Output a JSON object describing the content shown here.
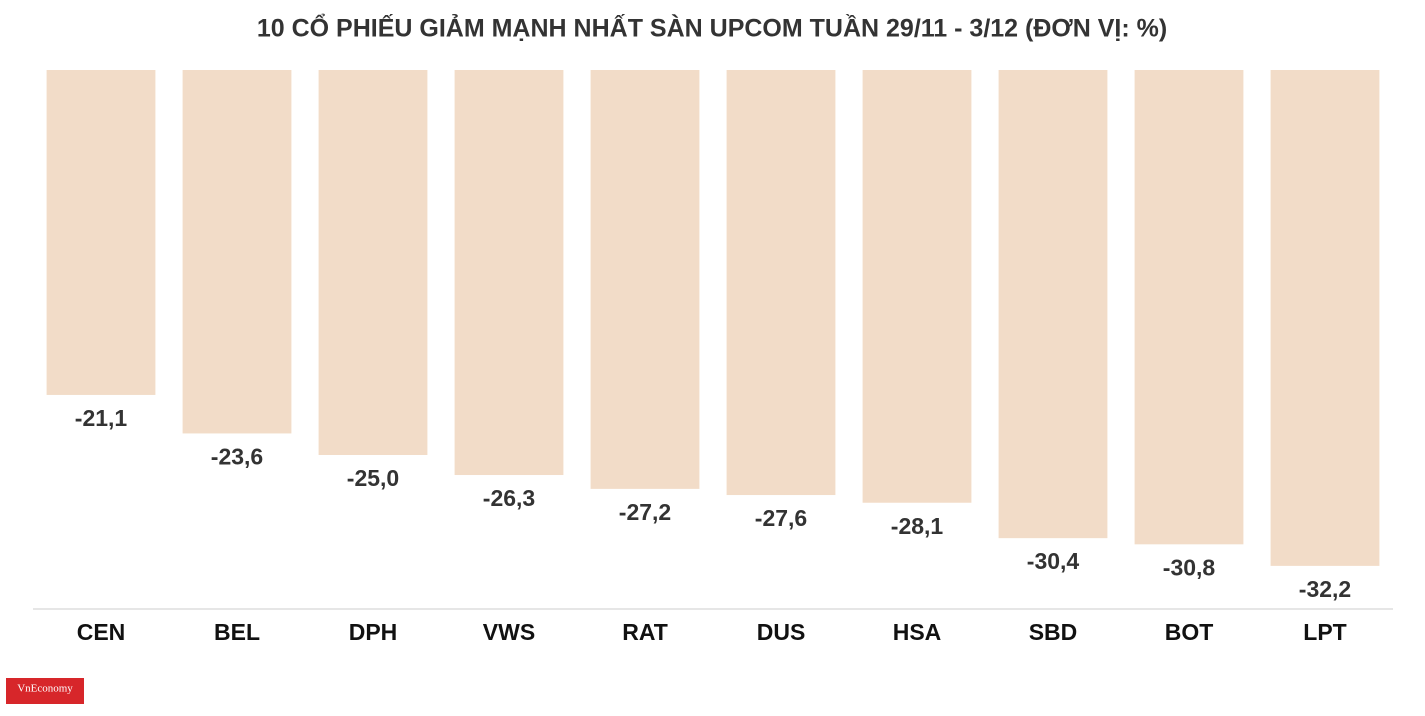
{
  "chart_data": {
    "type": "bar",
    "title": "10 CỔ PHIẾU GIẢM MẠNH NHẤT SÀN UPCOM TUẦN 29/11 - 3/12 (ĐƠN VỊ: %)",
    "categories": [
      "CEN",
      "BEL",
      "DPH",
      "VWS",
      "RAT",
      "DUS",
      "HSA",
      "SBD",
      "BOT",
      "LPT"
    ],
    "values": [
      -21.1,
      -23.6,
      -25.0,
      -26.3,
      -27.2,
      -27.6,
      -28.1,
      -30.4,
      -30.8,
      -32.2
    ],
    "value_labels": [
      "-21,1",
      "-23,6",
      "-25,0",
      "-26,3",
      "-27,2",
      "-27,6",
      "-28,1",
      "-30,4",
      "-30,8",
      "-32,2"
    ],
    "color": "#f2dcc8",
    "ylim": [
      -35,
      0
    ],
    "grid": false
  },
  "logo": "VnEconomy"
}
